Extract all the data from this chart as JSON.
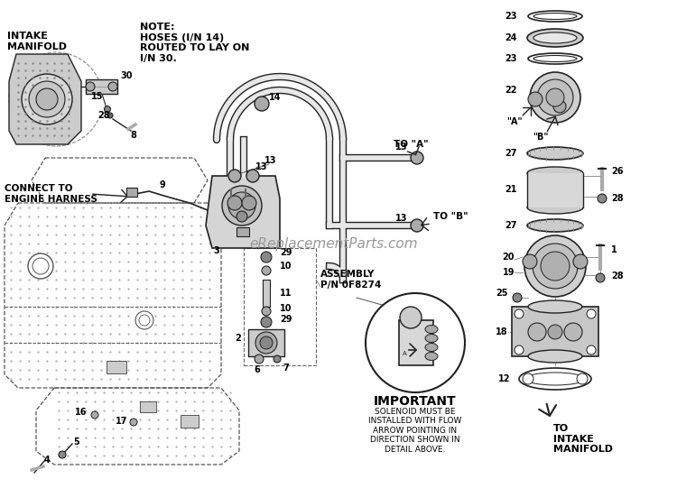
{
  "bg_color": "#ffffff",
  "note_text": "NOTE:\nHOSES (I/N 14)\nROUTED TO LAY ON\nI/N 30.",
  "intake_manifold_label": "INTAKE\nMANIFOLD",
  "connect_label": "CONNECT TO\nENGINE HARNESS",
  "assembly_label": "ASSEMBLY\nP/N 0F8274",
  "important_label": "IMPORTANT",
  "solenoid_text": "SOLENOID MUST BE\nINSTALLED WITH FLOW\nARROW POINTING IN\nDIRECTION SHOWN IN\nDETAIL ABOVE.",
  "to_intake_label": "TO\nINTAKE\nMANIFOLD",
  "to_a_label": "TO \"A\"",
  "to_b_label": "TO \"B\"",
  "a_label": "\"A\"",
  "b_label": "\"B\"",
  "watermark": "eReplacementParts.com",
  "lc": "#222222",
  "gray1": "#cccccc",
  "gray2": "#aaaaaa",
  "gray3": "#888888",
  "gray4": "#666666",
  "gray5": "#444444",
  "frame_color": "#555555",
  "hose_fill": "#e8e8e8"
}
